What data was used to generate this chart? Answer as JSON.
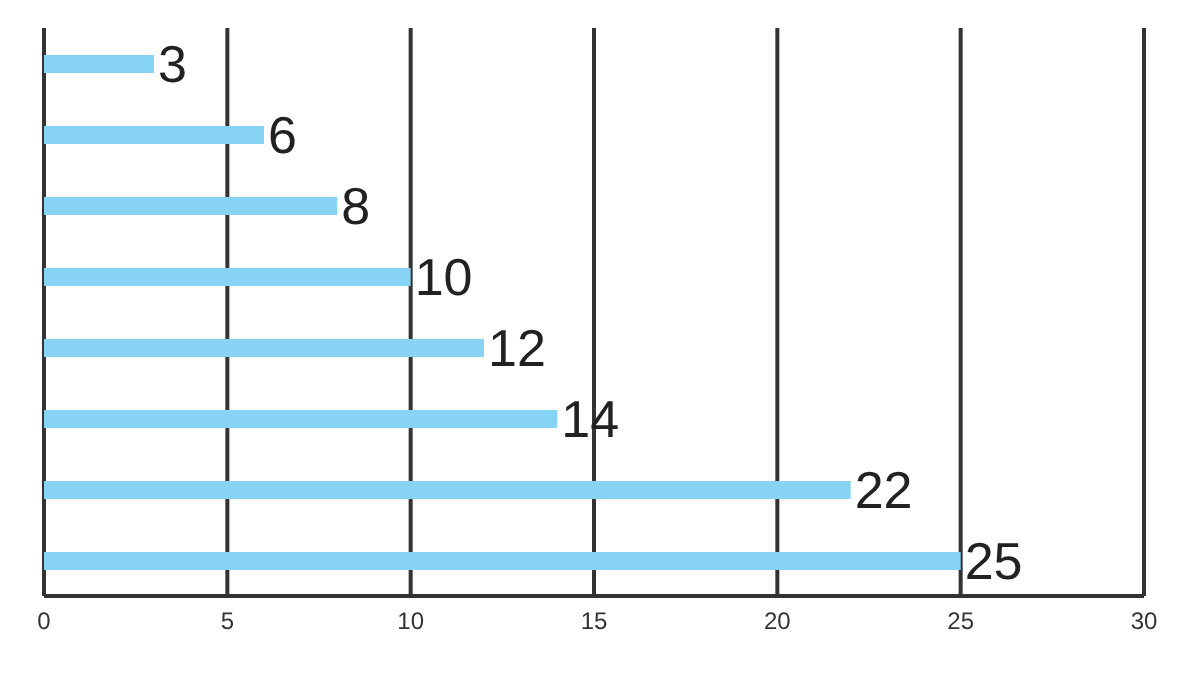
{
  "chart_data": {
    "type": "bar",
    "orientation": "horizontal",
    "categories": [
      null,
      null,
      null,
      null,
      null,
      null,
      null,
      null
    ],
    "values": [
      3,
      6,
      8,
      10,
      12,
      14,
      22,
      25
    ],
    "color": "#87d3f3",
    "data_labels": true,
    "xlim": [
      0,
      30
    ],
    "xticks": [
      0,
      5,
      10,
      15,
      20,
      25,
      30
    ],
    "grid": "x"
  }
}
